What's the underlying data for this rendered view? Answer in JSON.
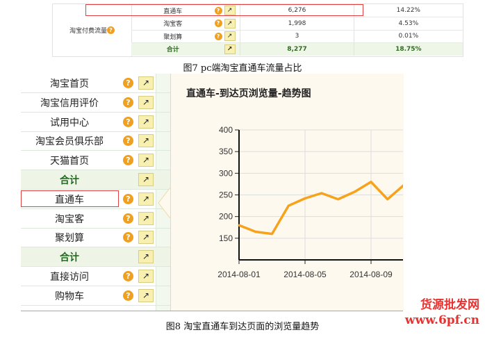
{
  "table1": {
    "group_label": "淘宝付费流量",
    "rows": [
      {
        "name": "直通车",
        "value": "6,276",
        "pct": "14.22%",
        "highlight": true
      },
      {
        "name": "淘宝客",
        "value": "1,998",
        "pct": "4.53%"
      },
      {
        "name": "聚划算",
        "value": "3",
        "pct": "0.01%"
      }
    ],
    "total": {
      "name": "合计",
      "value": "8,277",
      "pct": "18.75%"
    }
  },
  "caption1": "图7 pc端淘宝直通车流量占比",
  "sidebar": {
    "items": [
      {
        "label": "淘宝首页"
      },
      {
        "label": "淘宝信用评价"
      },
      {
        "label": "试用中心"
      },
      {
        "label": "淘宝会员俱乐部"
      },
      {
        "label": "天猫首页"
      },
      {
        "label": "合计",
        "total": true
      },
      {
        "label": "直通车",
        "highlight": true
      },
      {
        "label": "淘宝客"
      },
      {
        "label": "聚划算"
      },
      {
        "label": "合计",
        "total": true
      },
      {
        "label": "直接访问"
      },
      {
        "label": "购物车"
      }
    ]
  },
  "icons": {
    "help": "question-circle-icon",
    "trend": "trend-chart-icon"
  },
  "chart_data": {
    "type": "line",
    "title": "直通车-到达页浏览量-趋势图",
    "x": [
      "2014-08-01",
      "2014-08-02",
      "2014-08-03",
      "2014-08-04",
      "2014-08-05",
      "2014-08-06",
      "2014-08-07",
      "2014-08-08",
      "2014-08-09",
      "2014-08-10",
      "2014-08-11"
    ],
    "values": [
      180,
      165,
      160,
      225,
      242,
      254,
      240,
      257,
      280,
      240,
      273
    ],
    "xticks": [
      "2014-08-01",
      "2014-08-05",
      "2014-08-09"
    ],
    "yticks": [
      150,
      200,
      250,
      300,
      350,
      400
    ],
    "ylim": [
      100,
      400
    ],
    "grid": true,
    "color": "#f7a21b"
  },
  "caption2": "图8 淘宝直通车到达页面的浏览量趋势",
  "watermark": {
    "line1": "货源批发网",
    "line2": "www.6pf.cn"
  }
}
